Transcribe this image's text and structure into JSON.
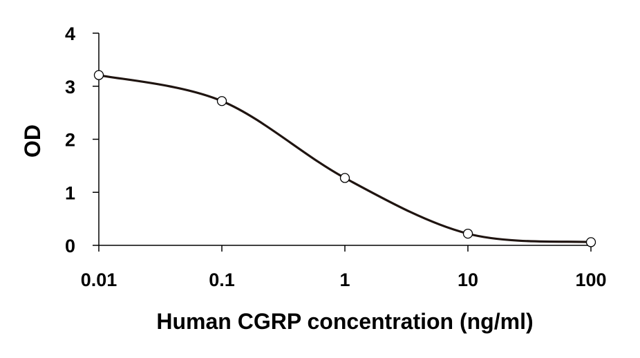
{
  "chart_data": {
    "type": "line",
    "title": "",
    "xlabel": "Human CGRP concentration (ng/ml)",
    "ylabel": "OD",
    "x_scale": "log",
    "xlim": [
      0.01,
      100
    ],
    "ylim": [
      0,
      4
    ],
    "x_ticks": [
      0.01,
      0.1,
      1,
      10,
      100
    ],
    "x_tick_labels": [
      "0.01",
      "0.1",
      "1",
      "10",
      "100"
    ],
    "y_ticks": [
      0,
      1,
      2,
      3,
      4
    ],
    "y_tick_labels": [
      "0",
      "1",
      "2",
      "3",
      "4"
    ],
    "grid": false,
    "legend": "none",
    "series": [
      {
        "x": [
          0.01,
          0.1,
          1,
          10,
          100
        ],
        "y": [
          3.21,
          2.72,
          1.27,
          0.22,
          0.06
        ]
      }
    ],
    "colors": {
      "line": "#1f1410",
      "marker_fill": "#ffffff",
      "marker_stroke": "#000000",
      "axis": "#000000"
    }
  }
}
